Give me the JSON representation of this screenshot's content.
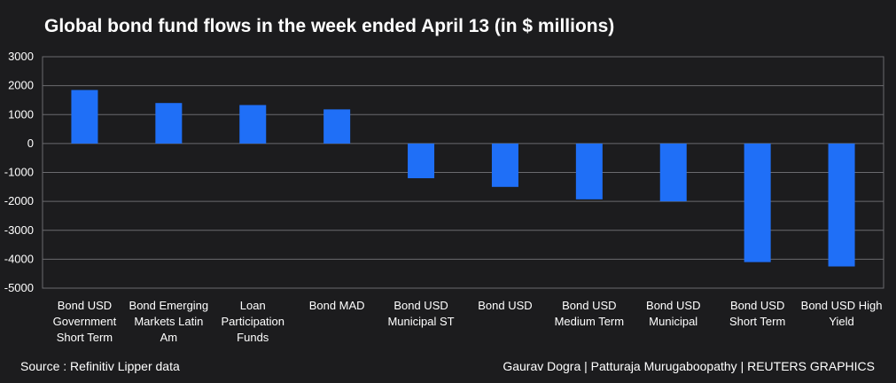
{
  "chart_data": {
    "type": "bar",
    "title": "Global bond fund flows in the week ended April 13 (in $ millions)",
    "categories": [
      "Bond USD Government Short Term",
      "Bond Emerging Markets Latin Am",
      "Loan Participation Funds",
      "Bond MAD",
      "Bond USD Municipal ST",
      "Bond USD",
      "Bond USD Medium Term",
      "Bond USD Municipal",
      "Bond USD Short Term",
      "Bond USD High Yield"
    ],
    "category_lines": [
      [
        "Bond USD",
        "Government",
        "Short Term"
      ],
      [
        "Bond Emerging",
        "Markets Latin",
        "Am"
      ],
      [
        "Loan",
        "Participation",
        "Funds"
      ],
      [
        "Bond MAD"
      ],
      [
        "Bond USD",
        "Municipal ST"
      ],
      [
        "Bond USD"
      ],
      [
        "Bond USD",
        "Medium Term"
      ],
      [
        "Bond USD",
        "Municipal"
      ],
      [
        "Bond USD",
        "Short Term"
      ],
      [
        "Bond USD High",
        "Yield"
      ]
    ],
    "values": [
      1850,
      1400,
      1330,
      1180,
      -1200,
      -1500,
      -1930,
      -2000,
      -4100,
      -4250
    ],
    "ylim": [
      -5000,
      3000
    ],
    "yticks": [
      3000,
      2000,
      1000,
      0,
      -1000,
      -2000,
      -3000,
      -4000,
      -5000
    ],
    "grid": true,
    "bar_color": "#1f6ff7",
    "grid_color": "#6a6a6e",
    "xlabel": "",
    "ylabel": ""
  },
  "footer": {
    "source": "Source : Refinitiv Lipper data",
    "credit": "Gaurav Dogra | Patturaja Murugaboopathy | REUTERS GRAPHICS"
  }
}
